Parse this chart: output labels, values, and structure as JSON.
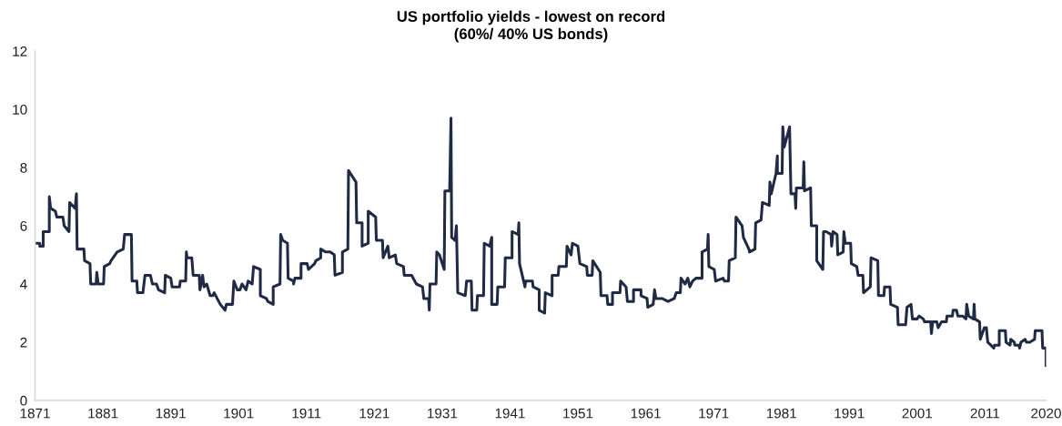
{
  "chart_data": {
    "type": "line",
    "title": "US portfolio yields - lowest on record",
    "subtitle": "(60%/ 40% US bonds)",
    "xlim": [
      1871,
      2020
    ],
    "xticks": [
      1871,
      1881,
      1891,
      1901,
      1911,
      1921,
      1931,
      1941,
      1951,
      1961,
      1971,
      1981,
      1991,
      2001,
      2011,
      2020
    ],
    "ylim": [
      0,
      12
    ],
    "yticks": [
      0,
      2,
      4,
      6,
      8,
      10,
      12
    ],
    "grid": false,
    "marker": "none",
    "line_style": "solid",
    "series": [
      {
        "color": "#1f2a44",
        "x": [
          1871.1,
          1871.7,
          1871.7,
          1872.2,
          1872.2,
          1873.1,
          1873.1,
          1873.3,
          1874.0,
          1874.2,
          1875.1,
          1875.3,
          1876.0,
          1876.1,
          1876.9,
          1877.1,
          1877.2,
          1878.2,
          1878.3,
          1879.1,
          1879.2,
          1880.0,
          1880.1,
          1880.3,
          1881.1,
          1881.2,
          1882.0,
          1882.2,
          1883.1,
          1884.0,
          1884.2,
          1885.2,
          1885.3,
          1886.0,
          1886.1,
          1886.9,
          1887.2,
          1888.0,
          1888.3,
          1888.9,
          1889.2,
          1890.1,
          1890.2,
          1891.0,
          1891.2,
          1892.3,
          1892.4,
          1893.2,
          1893.3,
          1893.4,
          1894.1,
          1894.3,
          1895.2,
          1895.3,
          1895.7,
          1895.9,
          1896.3,
          1896.8,
          1897.2,
          1897.4,
          1898.3,
          1899.0,
          1899.2,
          1900.1,
          1900.3,
          1900.8,
          1901.2,
          1901.5,
          1902.1,
          1902.4,
          1903.0,
          1903.2,
          1904.2,
          1904.2,
          1905.1,
          1905.3,
          1906.1,
          1906.1,
          1907.1,
          1907.2,
          1907.5,
          1908.2,
          1908.3,
          1909.1,
          1909.1,
          1909.3,
          1910.2,
          1910.2,
          1911.1,
          1911.3,
          1912.2,
          1912.4,
          1913.1,
          1913.1,
          1913.8,
          1914.5,
          1915.1,
          1915.2,
          1916.3,
          1916.3,
          1917.1,
          1917.2,
          1918.3,
          1918.4,
          1919.2,
          1919.2,
          1920.1,
          1920.1,
          1921.2,
          1921.3,
          1922.2,
          1922.3,
          1923.0,
          1923.2,
          1924.1,
          1924.3,
          1925.3,
          1925.4,
          1926.5,
          1927.2,
          1928.1,
          1928.3,
          1929.0,
          1929.1,
          1929.2,
          1930.1,
          1930.2,
          1930.6,
          1931.3,
          1931.4,
          1932.1,
          1932.3,
          1932.4,
          1932.9,
          1933.1,
          1933.3,
          1934.4,
          1934.6,
          1935.3,
          1935.4,
          1936.1,
          1936.2,
          1937.1,
          1937.2,
          1938.0,
          1938.3,
          1938.3,
          1939.1,
          1939.2,
          1940.2,
          1940.3,
          1941.3,
          1941.3,
          1942.2,
          1942.3,
          1942.4,
          1943.2,
          1943.3,
          1944.3,
          1944.4,
          1945.3,
          1945.3,
          1946.1,
          1946.2,
          1947.2,
          1947.2,
          1948.1,
          1948.2,
          1949.3,
          1949.4,
          1950.0,
          1950.2,
          1951.0,
          1951.3,
          1952.3,
          1952.4,
          1953.1,
          1953.2,
          1954.3,
          1954.4,
          1955.3,
          1955.4,
          1956.1,
          1956.1,
          1957.2,
          1957.3,
          1958.1,
          1958.3,
          1959.2,
          1959.2,
          1960.3,
          1960.3,
          1961.2,
          1961.3,
          1962.1,
          1962.3,
          1962.5,
          1963.4,
          1964.3,
          1965.2,
          1965.5,
          1966.1,
          1966.2,
          1966.8,
          1967.2,
          1967.5,
          1967.9,
          1968.4,
          1969.3,
          1969.3,
          1970.1,
          1970.2,
          1970.3,
          1971.1,
          1971.3,
          1972.4,
          1972.6,
          1973.2,
          1973.3,
          1974.2,
          1974.3,
          1975.2,
          1975.4,
          1976.2,
          1976.3,
          1977.1,
          1977.2,
          1978.0,
          1978.2,
          1979.2,
          1979.3,
          1979.5,
          1980.2,
          1980.4,
          1980.4,
          1981.1,
          1981.2,
          1981.4,
          1982.2,
          1982.4,
          1983.0,
          1983.1,
          1983.2,
          1984.2,
          1984.3,
          1984.4,
          1985.3,
          1985.4,
          1986.2,
          1986.2,
          1987.1,
          1987.2,
          1987.6,
          1988.3,
          1988.4,
          1988.6,
          1989.2,
          1989.3,
          1990.1,
          1990.2,
          1990.4,
          1991.2,
          1991.3,
          1992.1,
          1992.3,
          1993.0,
          1993.1,
          1994.1,
          1994.2,
          1995.2,
          1995.3,
          1996.1,
          1996.2,
          1997.0,
          1997.1,
          1998.1,
          1998.2,
          1999.3,
          1999.5,
          2000.1,
          2000.3,
          2001.0,
          2001.3,
          2001.9,
          2002.1,
          2003.0,
          2003.1,
          2003.3,
          2003.9,
          2004.1,
          2004.6,
          2005.3,
          2005.4,
          2006.2,
          2006.3,
          2006.8,
          2007.0,
          2007.7,
          2008.2,
          2008.3,
          2008.6,
          2009.3,
          2009.4,
          2009.5,
          2010.2,
          2010.3,
          2010.9,
          2011.2,
          2011.4,
          2012.3,
          2012.4,
          2013.1,
          2013.1,
          2014.0,
          2014.1,
          2014.7,
          2014.8,
          2015.3,
          2015.4,
          2016.0,
          2016.1,
          2016.3,
          2016.9,
          2017.1,
          2017.6,
          2018.3,
          2018.4,
          2019.4,
          2019.5,
          2020.0,
          2020.0
        ],
        "values": [
          5.4,
          5.4,
          5.3,
          5.3,
          5.8,
          5.8,
          7.0,
          6.6,
          6.5,
          6.3,
          6.3,
          6.0,
          5.8,
          6.8,
          6.6,
          7.1,
          5.2,
          5.2,
          4.8,
          4.7,
          4.0,
          4.0,
          4.4,
          4.0,
          4.0,
          4.6,
          4.7,
          4.8,
          5.1,
          5.2,
          5.7,
          5.7,
          4.1,
          4.1,
          3.7,
          3.7,
          4.3,
          4.3,
          4.0,
          4.0,
          3.8,
          3.7,
          4.3,
          4.2,
          3.9,
          3.9,
          4.1,
          4.1,
          5.1,
          4.9,
          4.9,
          4.3,
          4.3,
          3.8,
          4.3,
          3.9,
          4.0,
          3.6,
          3.6,
          3.7,
          3.3,
          3.1,
          3.3,
          3.3,
          4.1,
          3.8,
          3.8,
          4.0,
          3.8,
          4.1,
          4.0,
          4.6,
          4.5,
          3.6,
          3.5,
          3.4,
          3.3,
          3.9,
          4.0,
          5.7,
          5.5,
          5.4,
          4.2,
          4.1,
          4.0,
          4.2,
          4.2,
          4.7,
          4.7,
          4.5,
          4.7,
          4.8,
          4.9,
          5.2,
          5.1,
          5.1,
          5.0,
          4.3,
          4.4,
          5.1,
          5.2,
          7.9,
          7.5,
          6.1,
          6.1,
          5.3,
          5.4,
          6.5,
          6.3,
          5.5,
          5.5,
          4.9,
          5.3,
          4.9,
          5.0,
          4.7,
          4.6,
          4.3,
          4.3,
          4.0,
          3.9,
          3.5,
          3.5,
          3.1,
          4.0,
          4.0,
          5.1,
          5.0,
          4.5,
          7.2,
          7.2,
          9.7,
          5.6,
          5.5,
          6.0,
          3.7,
          3.6,
          4.1,
          4.1,
          3.1,
          3.1,
          3.6,
          3.6,
          5.4,
          5.3,
          5.6,
          3.3,
          3.3,
          3.9,
          3.9,
          4.9,
          4.9,
          5.8,
          5.7,
          6.1,
          4.7,
          3.9,
          4.1,
          4.1,
          3.9,
          3.8,
          3.1,
          3.0,
          3.7,
          3.6,
          4.3,
          4.3,
          4.6,
          4.6,
          5.3,
          5.0,
          5.4,
          5.3,
          4.7,
          4.6,
          4.3,
          4.3,
          4.8,
          4.4,
          3.6,
          3.6,
          3.3,
          3.3,
          3.7,
          3.7,
          4.1,
          3.9,
          3.4,
          3.4,
          3.8,
          3.8,
          3.6,
          3.5,
          3.2,
          3.3,
          3.8,
          3.5,
          3.5,
          3.4,
          3.5,
          3.7,
          3.7,
          4.2,
          4.0,
          4.2,
          3.9,
          4.1,
          4.2,
          4.2,
          5.1,
          5.2,
          5.7,
          4.6,
          4.5,
          4.1,
          4.2,
          4.1,
          4.1,
          4.8,
          4.9,
          6.3,
          6.0,
          5.6,
          5.2,
          5.1,
          5.2,
          6.1,
          6.2,
          6.8,
          6.7,
          7.5,
          7.1,
          7.8,
          8.4,
          7.8,
          7.8,
          9.4,
          8.7,
          9.4,
          7.1,
          7.1,
          6.6,
          7.3,
          7.3,
          8.2,
          7.2,
          7.3,
          6.0,
          6.0,
          4.8,
          4.5,
          5.8,
          5.8,
          5.7,
          5.3,
          5.8,
          5.7,
          5.0,
          5.1,
          5.8,
          5.4,
          5.4,
          4.7,
          4.6,
          4.3,
          4.3,
          3.7,
          3.9,
          4.9,
          4.8,
          3.6,
          3.6,
          3.9,
          3.9,
          3.3,
          3.2,
          2.6,
          2.6,
          3.2,
          3.3,
          2.8,
          2.8,
          2.9,
          2.8,
          2.7,
          2.7,
          2.3,
          2.7,
          2.7,
          2.5,
          2.7,
          2.7,
          2.9,
          2.9,
          3.1,
          3.1,
          2.9,
          2.9,
          2.8,
          3.3,
          2.9,
          2.8,
          3.3,
          2.8,
          2.7,
          2.1,
          2.5,
          2.5,
          2.0,
          1.8,
          1.9,
          1.9,
          2.4,
          2.4,
          2.0,
          1.9,
          2.1,
          2.0,
          1.9,
          1.9,
          1.8,
          2.0,
          2.1,
          2.0,
          2.0,
          2.1,
          2.4,
          2.4,
          1.8,
          1.8,
          1.2
        ]
      }
    ]
  }
}
